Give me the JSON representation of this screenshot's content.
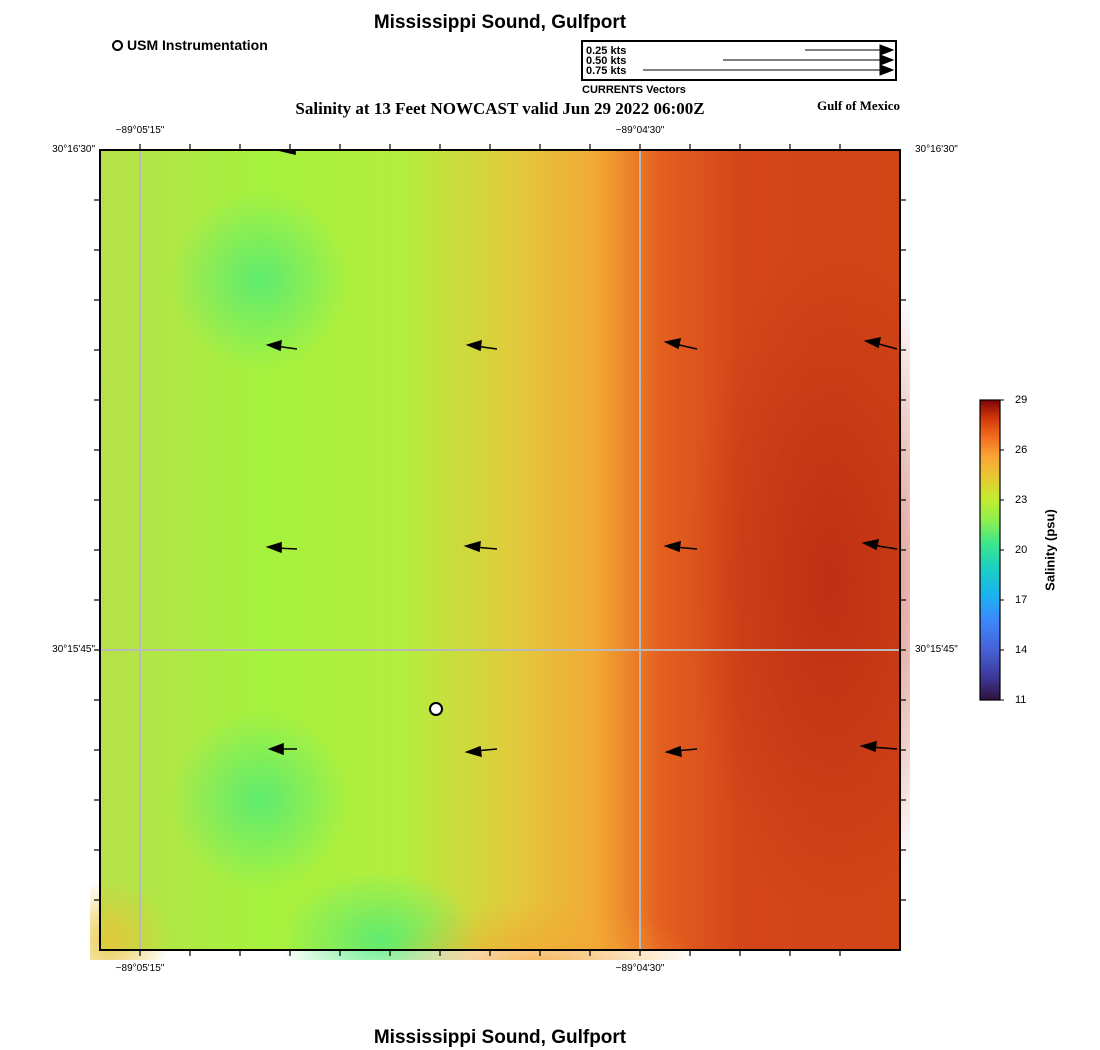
{
  "header": {
    "title": "Mississippi Sound, Gulfport",
    "subtitle": "Salinity at 13 Feet NOWCAST valid Jun 29 2022 06:00Z",
    "region_label": "Gulf of Mexico"
  },
  "legend": {
    "station_label": "USM Instrumentation",
    "vector_scale": [
      "0.25 kts",
      "0.50 kts",
      "0.75 kts"
    ],
    "vector_caption": "CURRENTS Vectors"
  },
  "map": {
    "lon_labels": [
      "−89°05'15\"",
      "−89°04'30\""
    ],
    "lat_labels": [
      "30°16'30\"",
      "30°15'45\""
    ],
    "station_marker": {
      "name": "USM Instrumentation",
      "shape": "open-circle"
    },
    "field": "Salinity",
    "colormap": "turbo"
  },
  "colorbar": {
    "title": "Salinity (psu)",
    "ticks": [
      "29",
      "26",
      "23",
      "20",
      "17",
      "14",
      "11"
    ],
    "min": 11,
    "max": 29
  },
  "footer": {
    "title": "Mississippi Sound, Gulfport"
  }
}
